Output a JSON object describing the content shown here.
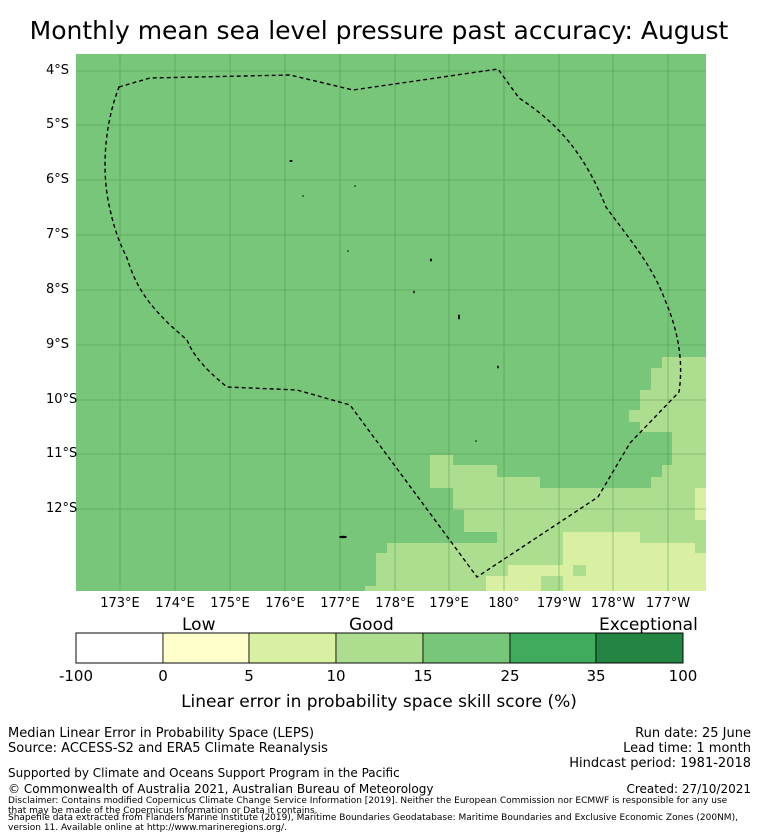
{
  "title": "Monthly mean sea level pressure past accuracy: August",
  "map": {
    "y_labels": [
      "4°S",
      "5°S",
      "6°S",
      "7°S",
      "8°S",
      "9°S",
      "10°S",
      "11°S",
      "12°S"
    ],
    "x_labels": [
      "173°E",
      "174°E",
      "175°E",
      "176°E",
      "177°E",
      "178°E",
      "179°E",
      "180°",
      "179°W",
      "178°W",
      "177°W"
    ],
    "background_color": "#78c679",
    "grid_color": "#3f8a44",
    "boundary_style": "dashed",
    "score_colors": {
      "0-5": "#ffffcc",
      "5-10": "#d9f0a3",
      "10-15": "#addd8e",
      "15-25": "#78c679",
      "25-35": "#41ab5d",
      "35-100": "#238443"
    }
  },
  "colorbar": {
    "category_labels": [
      "Low",
      "Good",
      "Exceptional"
    ],
    "ticks": [
      "-100",
      "0",
      "5",
      "10",
      "15",
      "25",
      "35",
      "100"
    ],
    "colors": [
      "#ffffff",
      "#ffffcc",
      "#d9f0a3",
      "#addd8e",
      "#78c679",
      "#41ab5d",
      "#238443"
    ],
    "label": "Linear error in probability space skill score (%)"
  },
  "footer": {
    "left_line1": "Median Linear Error in Probability Space (LEPS)",
    "left_line2": "Source: ACCESS-S2 and ERA5 Climate Reanalysis",
    "run_date": "Run date: 25 June",
    "lead_time": "Lead time: 1 month",
    "hindcast": "Hindcast period: 1981-2018",
    "supported": "Supported by Climate and Oceans Support Program in the Pacific",
    "copyright": "© Commonwealth of Australia 2021, Australian Bureau of Meteorology",
    "created": "Created: 27/10/2021",
    "disclaimer1": "Disclaimer: Contains modified Copernicus Climate Change Service Information [2019]. Neither the European Commission nor ECMWF is responsible for any use",
    "disclaimer2": "that may be made of the Copernicus Information or Data it contains.",
    "shapefile1": "Shapefile data extracted from Flanders Marine Institute (2019), Maritime Boundaries Geodatabase: Maritime Boundaries and Exclusive Economic Zones (200NM),",
    "shapefile2": "version 11. Available online at http://www.marineregions.org/."
  }
}
